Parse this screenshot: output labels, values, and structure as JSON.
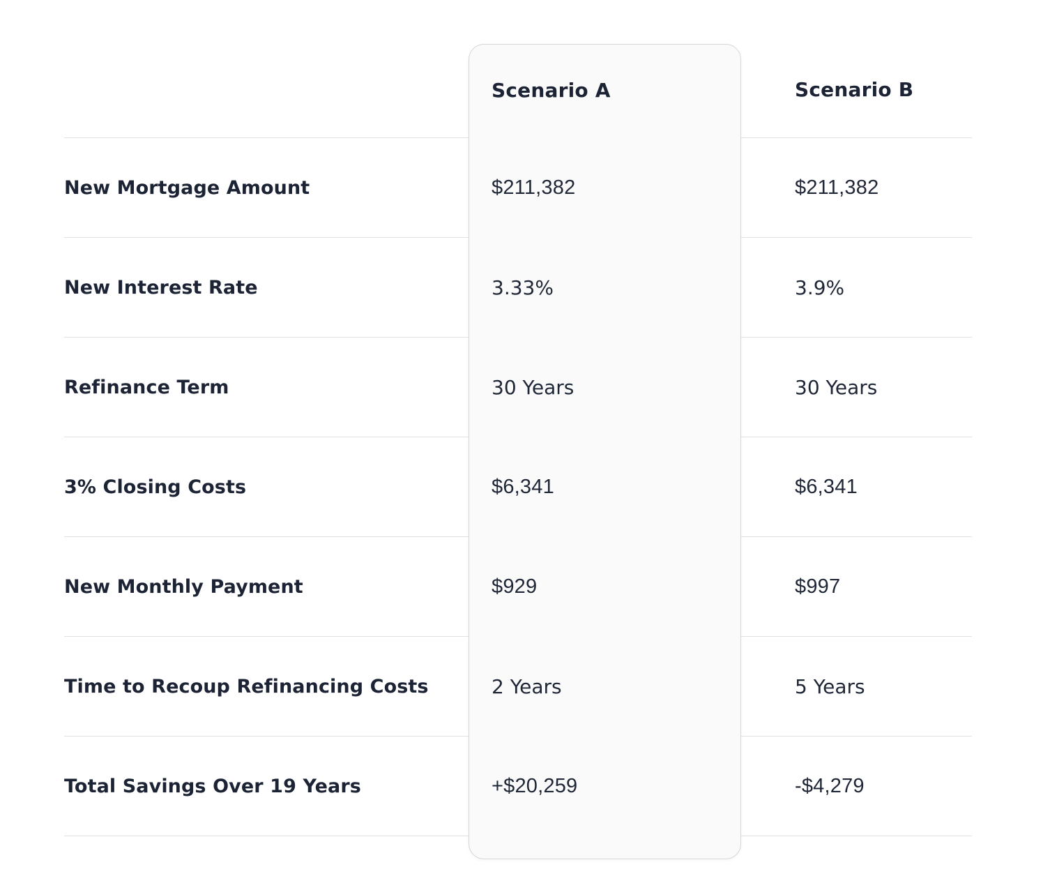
{
  "colors": {
    "page_background": "#ffffff",
    "text_primary": "#1c2334",
    "divider": "#e1e1e4",
    "highlight_card_background": "#fafafa",
    "highlight_card_border": "#d5d5da"
  },
  "comparison_table": {
    "highlighted_column": "Scenario A",
    "column_headers": [
      "Scenario A",
      "Scenario B"
    ],
    "rows": [
      {
        "label": "New Mortgage Amount",
        "scenario_a": "$211,382",
        "scenario_b": "$211,382"
      },
      {
        "label": "New Interest Rate",
        "scenario_a": "3.33%",
        "scenario_b": "3.9%"
      },
      {
        "label": "Refinance Term",
        "scenario_a": "30 Years",
        "scenario_b": "30 Years"
      },
      {
        "label": "3% Closing Costs",
        "scenario_a": "$6,341",
        "scenario_b": "$6,341"
      },
      {
        "label": "New Monthly Payment",
        "scenario_a": "$929",
        "scenario_b": "$997"
      },
      {
        "label": "Time to Recoup Refinancing Costs",
        "scenario_a": "2 Years",
        "scenario_b": "5 Years"
      },
      {
        "label": "Total Savings Over 19 Years",
        "scenario_a": "+$20,259",
        "scenario_b": "-$4,279"
      }
    ]
  }
}
